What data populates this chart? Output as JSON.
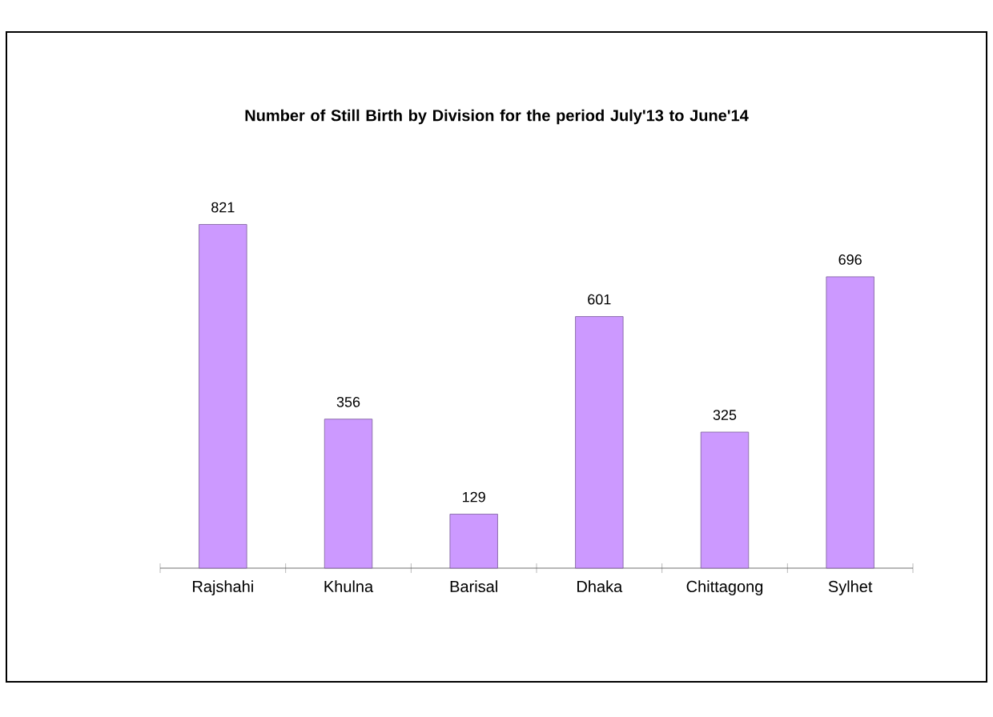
{
  "chart_data": {
    "type": "bar",
    "title": "Number of Still Birth by Division for the period July'13 to June'14",
    "categories": [
      "Rajshahi",
      "Khulna",
      "Barisal",
      "Dhaka",
      "Chittagong",
      "Sylhet"
    ],
    "values": [
      821,
      356,
      129,
      601,
      325,
      696
    ],
    "color": "#cc99ff",
    "data_labels": true
  }
}
